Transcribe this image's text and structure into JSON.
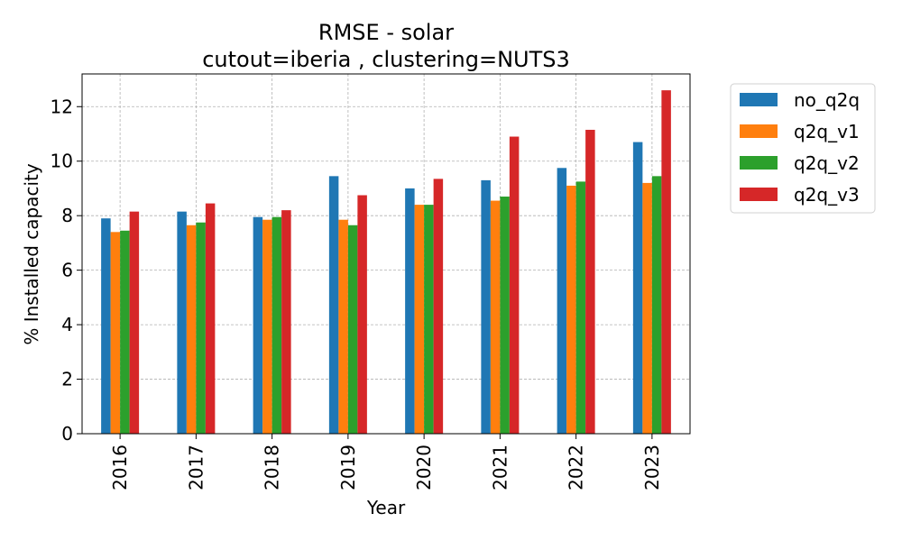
{
  "chart_data": {
    "type": "bar",
    "title": "RMSE - solar",
    "subtitle": "cutout=iberia , clustering=NUTS3",
    "xlabel": "Year",
    "ylabel": "% Installed capacity",
    "categories": [
      "2016",
      "2017",
      "2018",
      "2019",
      "2020",
      "2021",
      "2022",
      "2023"
    ],
    "series": [
      {
        "name": "no_q2q",
        "color": "#1f77b4",
        "values": [
          7.9,
          8.15,
          7.95,
          9.45,
          9.0,
          9.3,
          9.75,
          10.7
        ]
      },
      {
        "name": "q2q_v1",
        "color": "#ff7f0e",
        "values": [
          7.4,
          7.65,
          7.85,
          7.85,
          8.4,
          8.55,
          9.1,
          9.2
        ]
      },
      {
        "name": "q2q_v2",
        "color": "#2ca02c",
        "values": [
          7.45,
          7.75,
          7.95,
          7.65,
          8.4,
          8.7,
          9.25,
          9.45
        ]
      },
      {
        "name": "q2q_v3",
        "color": "#d62728",
        "values": [
          8.15,
          8.45,
          8.2,
          8.75,
          9.35,
          10.9,
          11.15,
          12.6
        ]
      }
    ],
    "ylim": [
      0,
      13.2
    ],
    "yticks": [
      0,
      2,
      4,
      6,
      8,
      10,
      12
    ],
    "grid": true,
    "legend_position": "outside-right"
  }
}
